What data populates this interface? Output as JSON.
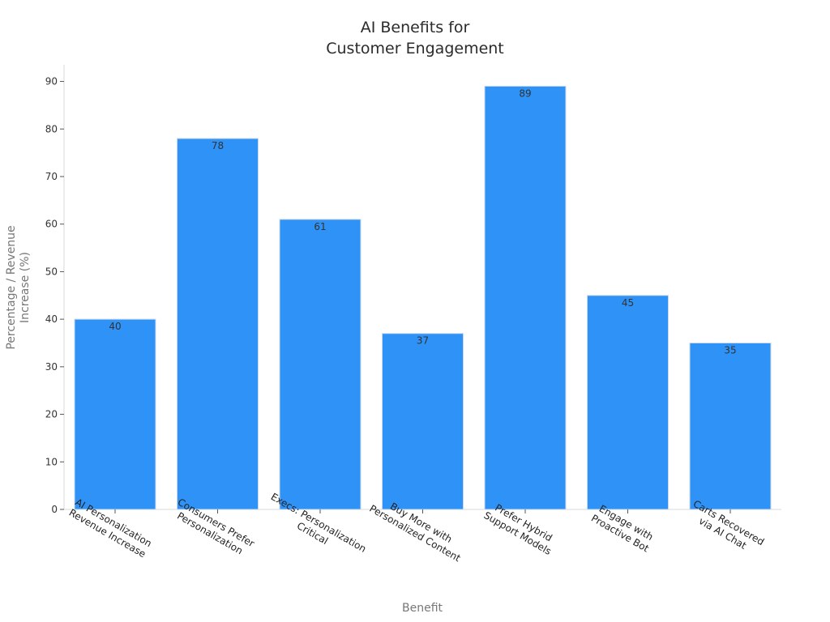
{
  "chart_data": {
    "type": "bar",
    "title_lines": [
      "AI Benefits for",
      "Customer Engagement"
    ],
    "xlabel": "Benefit",
    "ylabel_lines": [
      "Percentage / Revenue",
      "Increase (%)"
    ],
    "categories": [
      [
        "AI Personalization",
        "Revenue Increase"
      ],
      [
        "Consumers Prefer",
        "Personalization"
      ],
      [
        "Execs: Personalization",
        "Critical"
      ],
      [
        "Buy More with",
        "Personalized Content"
      ],
      [
        "Prefer Hybrid",
        "Support Models"
      ],
      [
        "Engage with",
        "Proactive Bot"
      ],
      [
        "Carts Recovered",
        "via AI Chat"
      ]
    ],
    "values": [
      40,
      78,
      61,
      37,
      89,
      45,
      35
    ],
    "data_labels": [
      "40",
      "78",
      "61",
      "37",
      "89",
      "45",
      "35"
    ],
    "yticks": [
      0,
      10,
      20,
      30,
      40,
      50,
      60,
      70,
      80,
      90
    ],
    "ylim": [
      0,
      93.5
    ],
    "grid": false,
    "legend": "none",
    "bar_color": "#2e92f7"
  }
}
